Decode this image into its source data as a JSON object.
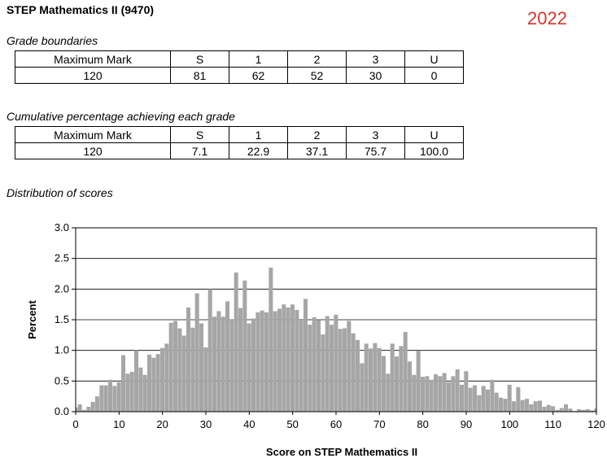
{
  "header": {
    "title": "STEP Mathematics II (9470)",
    "year": "2022"
  },
  "grade_boundaries": {
    "caption": "Grade boundaries",
    "headers": [
      "Maximum Mark",
      "S",
      "1",
      "2",
      "3",
      "U"
    ],
    "values": [
      "120",
      "81",
      "62",
      "52",
      "30",
      "0"
    ]
  },
  "cumulative": {
    "caption": "Cumulative percentage achieving each grade",
    "headers": [
      "Maximum Mark",
      "S",
      "1",
      "2",
      "3",
      "U"
    ],
    "values": [
      "120",
      "7.1",
      "22.9",
      "37.1",
      "75.7",
      "100.0"
    ]
  },
  "distribution": {
    "caption": "Distribution of scores"
  },
  "chart_data": {
    "type": "bar",
    "xlabel": "Score on STEP Mathematics II",
    "ylabel": "Percent",
    "xlim": [
      0,
      120
    ],
    "ylim": [
      0,
      3.0
    ],
    "xticks": [
      0,
      10,
      20,
      30,
      40,
      50,
      60,
      70,
      80,
      90,
      100,
      110,
      120
    ],
    "yticks": [
      "0.0",
      "0.5",
      "1.0",
      "1.5",
      "2.0",
      "2.5",
      "3.0"
    ],
    "grid": "horizontal",
    "bar_color": "#a6a6a6",
    "x": [
      0,
      1,
      2,
      3,
      4,
      5,
      6,
      7,
      8,
      9,
      10,
      11,
      12,
      13,
      14,
      15,
      16,
      17,
      18,
      19,
      20,
      21,
      22,
      23,
      24,
      25,
      26,
      27,
      28,
      29,
      30,
      31,
      32,
      33,
      34,
      35,
      36,
      37,
      38,
      39,
      40,
      41,
      42,
      43,
      44,
      45,
      46,
      47,
      48,
      49,
      50,
      51,
      52,
      53,
      54,
      55,
      56,
      57,
      58,
      59,
      60,
      61,
      62,
      63,
      64,
      65,
      66,
      67,
      68,
      69,
      70,
      71,
      72,
      73,
      74,
      75,
      76,
      77,
      78,
      79,
      80,
      81,
      82,
      83,
      84,
      85,
      86,
      87,
      88,
      89,
      90,
      91,
      92,
      93,
      94,
      95,
      96,
      97,
      98,
      99,
      100,
      101,
      102,
      103,
      104,
      105,
      106,
      107,
      108,
      109,
      110,
      111,
      112,
      113,
      114,
      115,
      116,
      117,
      118,
      119,
      120
    ],
    "values": [
      0.07,
      0.12,
      0.03,
      0.08,
      0.16,
      0.25,
      0.43,
      0.43,
      0.52,
      0.42,
      0.48,
      0.92,
      0.62,
      0.65,
      1.0,
      0.72,
      0.6,
      0.93,
      0.88,
      0.94,
      1.04,
      1.11,
      1.45,
      1.48,
      1.36,
      1.24,
      1.7,
      1.37,
      1.93,
      1.44,
      1.05,
      2.0,
      1.55,
      1.64,
      1.55,
      1.8,
      1.51,
      2.27,
      1.69,
      2.14,
      1.44,
      1.52,
      1.62,
      1.65,
      1.62,
      2.35,
      1.64,
      1.68,
      1.75,
      1.7,
      1.75,
      1.66,
      1.5,
      1.84,
      1.42,
      1.54,
      1.49,
      1.26,
      1.56,
      1.42,
      1.58,
      1.35,
      1.36,
      1.48,
      1.28,
      1.17,
      0.79,
      1.11,
      1.03,
      1.12,
      1.04,
      0.91,
      0.62,
      1.11,
      0.9,
      1.07,
      1.3,
      0.82,
      0.6,
      0.99,
      0.57,
      0.58,
      0.52,
      0.61,
      0.58,
      0.63,
      0.48,
      0.58,
      0.69,
      0.44,
      0.66,
      0.39,
      0.43,
      0.27,
      0.42,
      0.36,
      0.52,
      0.31,
      0.23,
      0.21,
      0.44,
      0.17,
      0.4,
      0.19,
      0.21,
      0.12,
      0.17,
      0.18,
      0.08,
      0.11,
      0.09,
      0.03,
      0.06,
      0.12,
      0.05,
      0.01,
      0.04,
      0.03,
      0.04,
      0.02,
      0.05
    ]
  }
}
